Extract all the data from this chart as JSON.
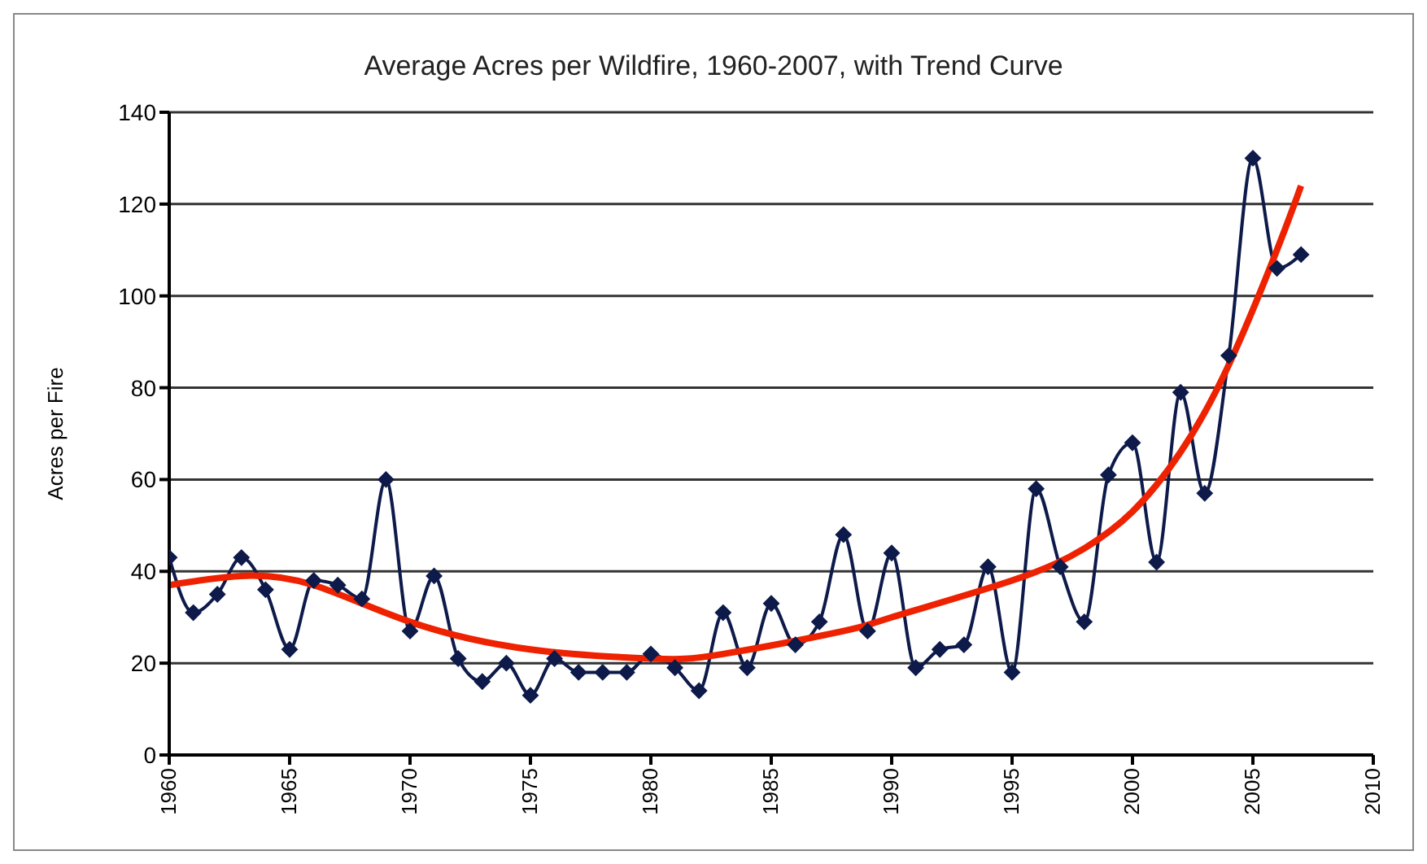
{
  "chart_data": {
    "type": "line",
    "title": "Average Acres per Wildfire, 1960-2007, with Trend Curve",
    "ylabel": "Acres per Fire",
    "x": [
      1960,
      1961,
      1962,
      1963,
      1964,
      1965,
      1966,
      1967,
      1968,
      1969,
      1970,
      1971,
      1972,
      1973,
      1974,
      1975,
      1976,
      1977,
      1978,
      1979,
      1980,
      1981,
      1982,
      1983,
      1984,
      1985,
      1986,
      1987,
      1988,
      1989,
      1990,
      1991,
      1992,
      1993,
      1994,
      1995,
      1996,
      1997,
      1998,
      1999,
      2000,
      2001,
      2002,
      2003,
      2004,
      2005,
      2006,
      2007
    ],
    "series": [
      {
        "color": "#0d1a4a",
        "marker": "diamond",
        "values": [
          43,
          31,
          35,
          43,
          36,
          23,
          38,
          37,
          34,
          60,
          27,
          39,
          21,
          16,
          20,
          13,
          21,
          18,
          18,
          18,
          22,
          19,
          14,
          31,
          19,
          33,
          24,
          29,
          48,
          27,
          44,
          19,
          23,
          24,
          41,
          18,
          58,
          41,
          29,
          61,
          68,
          42,
          79,
          57,
          87,
          130,
          106,
          109
        ]
      },
      {
        "type": "line",
        "color": "#ee2200",
        "marker": "none",
        "x": [
          1960,
          1963,
          1966,
          1970,
          1975,
          1980,
          1983,
          1988,
          1990,
          1995,
          1998,
          2000,
          2002,
          2004,
          2006,
          2007
        ],
        "values": [
          37,
          39,
          37,
          29,
          23,
          21,
          22,
          27,
          30,
          38,
          45,
          53,
          66,
          85,
          110,
          124
        ]
      }
    ],
    "xlim": [
      1960,
      2010
    ],
    "xticks": [
      1960,
      1965,
      1970,
      1975,
      1980,
      1985,
      1990,
      1995,
      2000,
      2005,
      2010
    ],
    "ylim": [
      0,
      140
    ],
    "yticks": [
      0,
      20,
      40,
      60,
      80,
      100,
      120,
      140
    ],
    "grid": "y"
  }
}
